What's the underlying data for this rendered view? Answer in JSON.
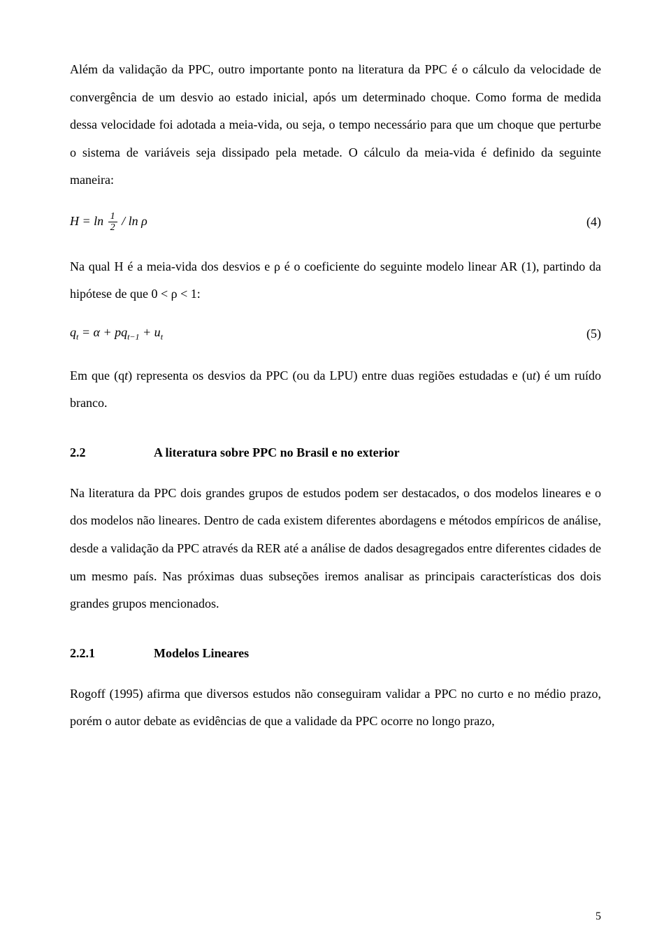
{
  "para1": "Além da validação da PPC, outro importante ponto na literatura da PPC é o cálculo da velocidade de convergência de um desvio ao estado inicial, após um determinado choque. Como forma de medida dessa velocidade foi adotada a meia-vida, ou seja, o tempo necessário para que um choque que perturbe o sistema de variáveis seja dissipado pela metade. O cálculo da meia-vida é definido da seguinte maneira:",
  "eq4": {
    "prefix": "H = ln",
    "frac_num": "1",
    "frac_den": "2",
    "suffix": " / ln ρ",
    "number": "(4)"
  },
  "para2": "Na qual H é a meia-vida dos desvios e ρ é o coeficiente do seguinte modelo linear AR (1), partindo da hipótese de que 0 < ρ < 1:",
  "eq5": {
    "text_q": "q",
    "sub_t": "t",
    "eq_mid": " = α + p",
    "sub_tm1": "t−1",
    "plus_u": " + u",
    "number": "(5)"
  },
  "para3_prefix": "Em que (q",
  "para3_mid": ") representa os desvios da PPC (ou da LPU) entre duas regiões estudadas e (u",
  "para3_suffix": ") é um ruído branco.",
  "section22": {
    "num": "2.2",
    "title": "A literatura sobre PPC no Brasil e no exterior"
  },
  "para4": "Na literatura da PPC dois grandes grupos de estudos podem ser destacados, o dos modelos lineares e o dos modelos não lineares. Dentro de cada existem diferentes abordagens e métodos empíricos de análise, desde a validação da PPC através da RER até a análise de dados desagregados entre diferentes cidades de um mesmo país. Nas próximas duas subseções iremos analisar as principais características dos dois grandes grupos mencionados.",
  "section221": {
    "num": "2.2.1",
    "title": "Modelos Lineares"
  },
  "para5": "Rogoff (1995) afirma que diversos estudos não conseguiram validar a PPC no curto e no médio prazo, porém o autor debate as evidências de que a validade da PPC ocorre no longo prazo,",
  "page_number": "5"
}
